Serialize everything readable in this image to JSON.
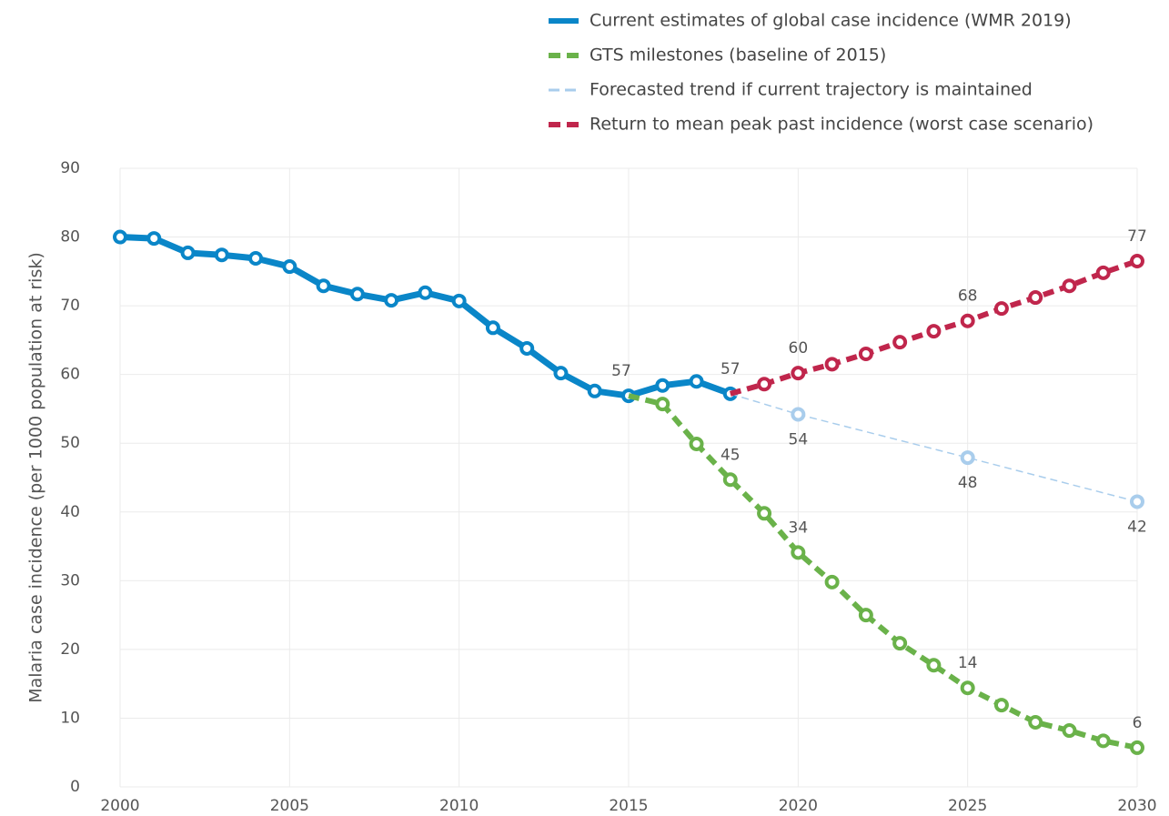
{
  "chart_data": {
    "type": "line",
    "y_label": "Malaria case incidence (per 1000 population at risk)",
    "xlim": [
      2000,
      2030
    ],
    "xticks": [
      2000,
      2005,
      2010,
      2015,
      2020,
      2025,
      2030
    ],
    "ylim": [
      0,
      90
    ],
    "yticks": [
      0,
      10,
      20,
      30,
      40,
      50,
      60,
      70,
      80,
      90
    ],
    "grid": true,
    "legend": "top-right",
    "series": [
      {
        "name": "Current estimates of global case incidence (WMR 2019)",
        "color": "#0a86c8",
        "dash": "solid",
        "x": [
          2000,
          2001,
          2002,
          2003,
          2004,
          2005,
          2006,
          2007,
          2008,
          2009,
          2010,
          2011,
          2012,
          2013,
          2014,
          2015,
          2016,
          2017,
          2018
        ],
        "values": [
          80.0,
          79.8,
          77.7,
          77.4,
          76.9,
          75.7,
          72.9,
          71.7,
          70.8,
          71.9,
          70.7,
          66.8,
          63.8,
          60.2,
          57.6,
          56.9,
          58.4,
          59.0,
          57.2
        ],
        "value_labels": [
          null,
          null,
          null,
          null,
          null,
          null,
          null,
          null,
          null,
          null,
          null,
          null,
          null,
          null,
          null,
          "57",
          null,
          null,
          "57"
        ]
      },
      {
        "name": "GTS milestones (baseline of 2015)",
        "color": "#6ab24a",
        "dash": "dashed",
        "x": [
          2015,
          2016,
          2017,
          2018,
          2019,
          2020,
          2021,
          2022,
          2023,
          2024,
          2025,
          2026,
          2027,
          2028,
          2029,
          2030
        ],
        "values": [
          56.9,
          55.7,
          49.9,
          44.7,
          39.8,
          34.1,
          29.8,
          25.0,
          20.9,
          17.7,
          14.4,
          11.9,
          9.4,
          8.2,
          6.7,
          5.7
        ],
        "value_labels": [
          null,
          null,
          null,
          "45",
          null,
          "34",
          null,
          null,
          null,
          null,
          "14",
          null,
          null,
          null,
          null,
          "6"
        ]
      },
      {
        "name": "Forecasted trend if current trajectory is maintained",
        "color": "#a9cdec",
        "dash": "thin-dashed",
        "x": [
          2018,
          2020,
          2025,
          2030
        ],
        "values": [
          57.2,
          54.2,
          47.9,
          41.5
        ],
        "value_labels": [
          null,
          "54",
          "48",
          "42"
        ]
      },
      {
        "name": "Return to mean peak past incidence (worst case scenario)",
        "color": "#c0264c",
        "dash": "dashed",
        "x": [
          2018,
          2019,
          2020,
          2021,
          2022,
          2023,
          2024,
          2025,
          2026,
          2027,
          2028,
          2029,
          2030
        ],
        "values": [
          57.2,
          58.6,
          60.2,
          61.5,
          63.0,
          64.7,
          66.3,
          67.8,
          69.6,
          71.2,
          72.9,
          74.8,
          76.5
        ],
        "value_labels": [
          null,
          null,
          "60",
          null,
          null,
          null,
          null,
          "68",
          null,
          null,
          null,
          null,
          "77"
        ]
      }
    ]
  }
}
